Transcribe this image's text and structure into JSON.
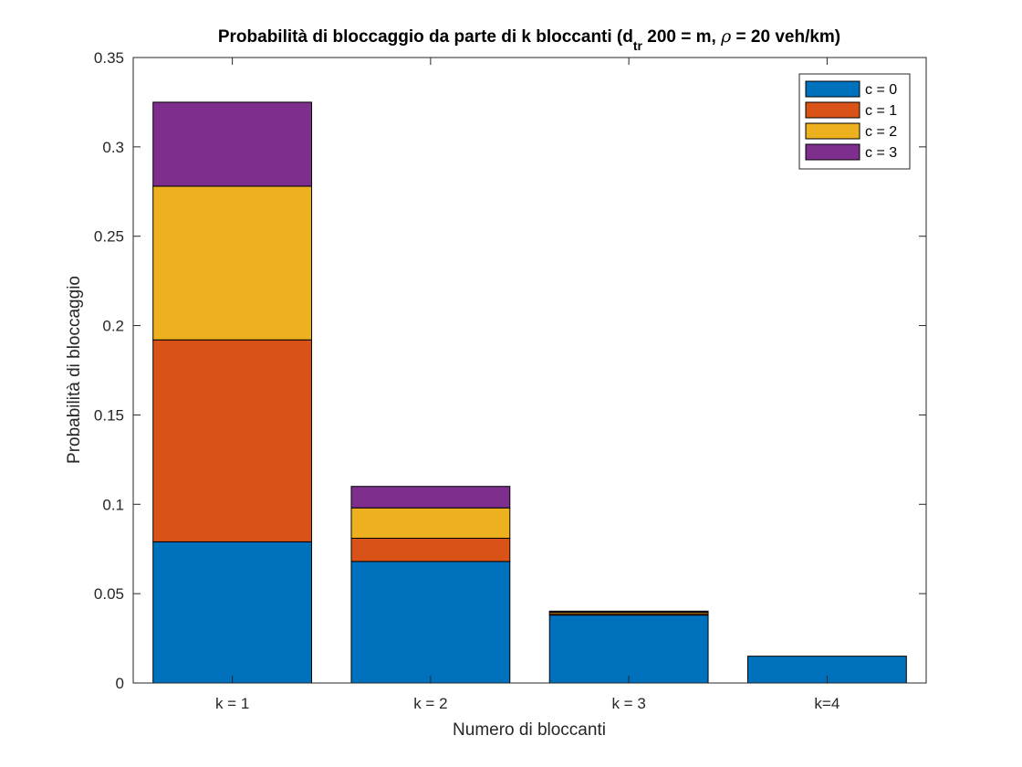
{
  "chart_data": {
    "type": "bar",
    "stacked": true,
    "title": "Probabilità di bloccaggio da parte di k bloccanti (d",
    "title_subscript": "tr",
    "title_suffix_1": " 200 = m, ",
    "title_symbol": "ρ",
    "title_suffix_2": " = 20 veh/km)",
    "xlabel": "Numero di bloccanti",
    "ylabel": "Probabilità di bloccaggio",
    "categories": [
      "k = 1",
      "k = 2",
      "k = 3",
      "k=4"
    ],
    "ylim": [
      0,
      0.35
    ],
    "yticks": [
      0,
      0.05,
      0.1,
      0.15,
      0.2,
      0.25,
      0.3,
      0.35
    ],
    "ytick_labels": [
      "0",
      "0.05",
      "0.1",
      "0.15",
      "0.2",
      "0.25",
      "0.3",
      "0.35"
    ],
    "series": [
      {
        "name": "c = 0",
        "color": "#0072BD",
        "values": [
          0.079,
          0.068,
          0.038,
          0.015
        ]
      },
      {
        "name": "c = 1",
        "color": "#D95319",
        "values": [
          0.113,
          0.013,
          0.0008,
          0
        ]
      },
      {
        "name": "c = 2",
        "color": "#EDB120",
        "values": [
          0.086,
          0.017,
          0.0008,
          0
        ]
      },
      {
        "name": "c = 3",
        "color": "#7E2F8E",
        "values": [
          0.047,
          0.012,
          0.0006,
          0
        ]
      }
    ],
    "legend_position": "top-right",
    "grid": false
  }
}
